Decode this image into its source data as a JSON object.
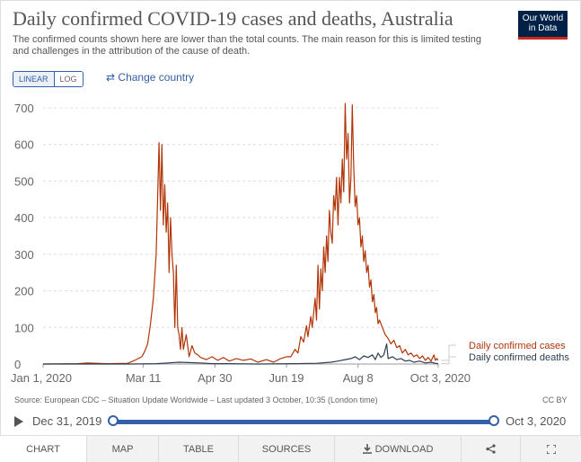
{
  "header": {
    "title": "Daily confirmed COVID-19 cases and deaths, Australia",
    "subtitle": "The confirmed counts shown here are lower than the total counts. The main reason for this is limited testing and challenges in the attribution of the cause of death.",
    "logo_line1": "Our World",
    "logo_line2": "in Data"
  },
  "controls": {
    "linear_label": "LINEAR",
    "log_label": "LOG",
    "change_country_label": "Change country",
    "active_scale": "linear"
  },
  "footer": {
    "source": "Source: European CDC – Situation Update Worldwide – Last updated 3 October, 10:35 (London time)",
    "license": "CC BY"
  },
  "timeline": {
    "start": "Dec 31, 2019",
    "end": "Oct 3, 2020",
    "start_fraction": 0,
    "end_fraction": 1
  },
  "tabs": [
    {
      "label": "CHART",
      "icon": ""
    },
    {
      "label": "MAP",
      "icon": ""
    },
    {
      "label": "TABLE",
      "icon": ""
    },
    {
      "label": "SOURCES",
      "icon": ""
    },
    {
      "label": "DOWNLOAD",
      "icon": "download-icon"
    },
    {
      "label": "",
      "icon": "share-icon"
    },
    {
      "label": "",
      "icon": "fullscreen-icon"
    }
  ],
  "colors": {
    "cases": "#b13507",
    "deaths": "#2d3e50",
    "grid": "#dddddd",
    "accent": "#3360a9"
  },
  "chart_data": {
    "type": "line",
    "title": "Daily confirmed COVID-19 cases and deaths, Australia",
    "ylim": [
      0,
      700
    ],
    "yticks": [
      0,
      100,
      200,
      300,
      400,
      500,
      600,
      700
    ],
    "xlim": [
      "2020-01-01",
      "2020-10-03"
    ],
    "xticks": [
      "2020-01-01",
      "2020-03-11",
      "2020-04-30",
      "2020-06-19",
      "2020-08-08",
      "2020-10-03"
    ],
    "xtick_labels": [
      "Jan 1, 2020",
      "Mar 11",
      "Apr 30",
      "Jun 19",
      "Aug 8",
      "Oct 3, 2020"
    ],
    "grid": "horizontal",
    "legend": "end-of-line labels",
    "series": [
      {
        "name": "Daily confirmed cases",
        "points": [
          [
            "2020-01-01",
            0
          ],
          [
            "2020-01-25",
            1
          ],
          [
            "2020-02-01",
            3
          ],
          [
            "2020-02-15",
            1
          ],
          [
            "2020-02-29",
            2
          ],
          [
            "2020-03-05",
            10
          ],
          [
            "2020-03-10",
            20
          ],
          [
            "2020-03-12",
            35
          ],
          [
            "2020-03-14",
            55
          ],
          [
            "2020-03-16",
            110
          ],
          [
            "2020-03-18",
            180
          ],
          [
            "2020-03-20",
            300
          ],
          [
            "2020-03-22",
            605
          ],
          [
            "2020-03-23",
            420
          ],
          [
            "2020-03-24",
            600
          ],
          [
            "2020-03-25",
            380
          ],
          [
            "2020-03-26",
            490
          ],
          [
            "2020-03-27",
            360
          ],
          [
            "2020-03-28",
            440
          ],
          [
            "2020-03-29",
            250
          ],
          [
            "2020-03-30",
            400
          ],
          [
            "2020-03-31",
            300
          ],
          [
            "2020-04-01",
            250
          ],
          [
            "2020-04-02",
            100
          ],
          [
            "2020-04-03",
            270
          ],
          [
            "2020-04-04",
            100
          ],
          [
            "2020-04-05",
            80
          ],
          [
            "2020-04-06",
            40
          ],
          [
            "2020-04-07",
            100
          ],
          [
            "2020-04-08",
            40
          ],
          [
            "2020-04-10",
            80
          ],
          [
            "2020-04-12",
            20
          ],
          [
            "2020-04-14",
            50
          ],
          [
            "2020-04-16",
            30
          ],
          [
            "2020-04-18",
            25
          ],
          [
            "2020-04-20",
            18
          ],
          [
            "2020-04-24",
            12
          ],
          [
            "2020-04-28",
            20
          ],
          [
            "2020-05-02",
            10
          ],
          [
            "2020-05-06",
            18
          ],
          [
            "2020-05-10",
            8
          ],
          [
            "2020-05-15",
            15
          ],
          [
            "2020-05-20",
            10
          ],
          [
            "2020-05-25",
            14
          ],
          [
            "2020-05-30",
            5
          ],
          [
            "2020-06-05",
            12
          ],
          [
            "2020-06-10",
            5
          ],
          [
            "2020-06-15",
            15
          ],
          [
            "2020-06-19",
            20
          ],
          [
            "2020-06-22",
            20
          ],
          [
            "2020-06-25",
            40
          ],
          [
            "2020-06-27",
            30
          ],
          [
            "2020-06-29",
            75
          ],
          [
            "2020-07-01",
            60
          ],
          [
            "2020-07-03",
            105
          ],
          [
            "2020-07-04",
            75
          ],
          [
            "2020-07-06",
            130
          ],
          [
            "2020-07-07",
            100
          ],
          [
            "2020-07-09",
            180
          ],
          [
            "2020-07-10",
            120
          ],
          [
            "2020-07-11",
            270
          ],
          [
            "2020-07-12",
            150
          ],
          [
            "2020-07-13",
            260
          ],
          [
            "2020-07-14",
            200
          ],
          [
            "2020-07-15",
            320
          ],
          [
            "2020-07-16",
            250
          ],
          [
            "2020-07-17",
            350
          ],
          [
            "2020-07-18",
            280
          ],
          [
            "2020-07-19",
            420
          ],
          [
            "2020-07-20",
            360
          ],
          [
            "2020-07-21",
            330
          ],
          [
            "2020-07-22",
            460
          ],
          [
            "2020-07-23",
            420
          ],
          [
            "2020-07-24",
            510
          ],
          [
            "2020-07-25",
            380
          ],
          [
            "2020-07-26",
            510
          ],
          [
            "2020-07-27",
            440
          ],
          [
            "2020-07-28",
            560
          ],
          [
            "2020-07-29",
            470
          ],
          [
            "2020-07-30",
            712
          ],
          [
            "2020-07-31",
            560
          ],
          [
            "2020-08-01",
            630
          ],
          [
            "2020-08-02",
            440
          ],
          [
            "2020-08-03",
            510
          ],
          [
            "2020-08-04",
            708
          ],
          [
            "2020-08-05",
            540
          ],
          [
            "2020-08-06",
            430
          ],
          [
            "2020-08-07",
            460
          ],
          [
            "2020-08-08",
            380
          ],
          [
            "2020-08-09",
            400
          ],
          [
            "2020-08-10",
            320
          ],
          [
            "2020-08-11",
            350
          ],
          [
            "2020-08-12",
            280
          ],
          [
            "2020-08-13",
            310
          ],
          [
            "2020-08-14",
            250
          ],
          [
            "2020-08-15",
            270
          ],
          [
            "2020-08-16",
            210
          ],
          [
            "2020-08-17",
            230
          ],
          [
            "2020-08-18",
            170
          ],
          [
            "2020-08-19",
            190
          ],
          [
            "2020-08-20",
            140
          ],
          [
            "2020-08-21",
            155
          ],
          [
            "2020-08-22",
            110
          ],
          [
            "2020-08-23",
            120
          ],
          [
            "2020-08-25",
            100
          ],
          [
            "2020-08-27",
            80
          ],
          [
            "2020-08-29",
            70
          ],
          [
            "2020-08-31",
            55
          ],
          [
            "2020-09-02",
            65
          ],
          [
            "2020-09-04",
            45
          ],
          [
            "2020-09-06",
            50
          ],
          [
            "2020-09-08",
            30
          ],
          [
            "2020-09-10",
            40
          ],
          [
            "2020-09-12",
            25
          ],
          [
            "2020-09-14",
            30
          ],
          [
            "2020-09-16",
            20
          ],
          [
            "2020-09-18",
            25
          ],
          [
            "2020-09-20",
            15
          ],
          [
            "2020-09-22",
            22
          ],
          [
            "2020-09-24",
            10
          ],
          [
            "2020-09-26",
            18
          ],
          [
            "2020-09-28",
            8
          ],
          [
            "2020-09-30",
            25
          ],
          [
            "2020-10-01",
            10
          ],
          [
            "2020-10-02",
            15
          ],
          [
            "2020-10-03",
            10
          ]
        ]
      },
      {
        "name": "Daily confirmed deaths",
        "points": [
          [
            "2020-01-01",
            0
          ],
          [
            "2020-03-01",
            0
          ],
          [
            "2020-03-20",
            1
          ],
          [
            "2020-03-28",
            3
          ],
          [
            "2020-04-05",
            5
          ],
          [
            "2020-04-12",
            4
          ],
          [
            "2020-04-20",
            3
          ],
          [
            "2020-04-28",
            1
          ],
          [
            "2020-05-10",
            1
          ],
          [
            "2020-05-30",
            0
          ],
          [
            "2020-06-25",
            1
          ],
          [
            "2020-07-10",
            2
          ],
          [
            "2020-07-20",
            5
          ],
          [
            "2020-07-25",
            8
          ],
          [
            "2020-07-30",
            12
          ],
          [
            "2020-08-03",
            15
          ],
          [
            "2020-08-06",
            20
          ],
          [
            "2020-08-09",
            12
          ],
          [
            "2020-08-12",
            22
          ],
          [
            "2020-08-15",
            18
          ],
          [
            "2020-08-18",
            25
          ],
          [
            "2020-08-20",
            12
          ],
          [
            "2020-08-22",
            30
          ],
          [
            "2020-08-24",
            18
          ],
          [
            "2020-08-26",
            25
          ],
          [
            "2020-08-28",
            55
          ],
          [
            "2020-08-29",
            15
          ],
          [
            "2020-09-01",
            20
          ],
          [
            "2020-09-04",
            12
          ],
          [
            "2020-09-07",
            15
          ],
          [
            "2020-09-10",
            8
          ],
          [
            "2020-09-13",
            10
          ],
          [
            "2020-09-16",
            5
          ],
          [
            "2020-09-20",
            8
          ],
          [
            "2020-09-24",
            3
          ],
          [
            "2020-09-28",
            5
          ],
          [
            "2020-10-01",
            2
          ],
          [
            "2020-10-03",
            1
          ]
        ]
      }
    ]
  }
}
